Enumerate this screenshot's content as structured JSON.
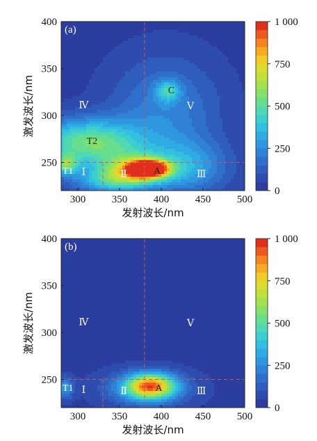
{
  "chart_data": [
    {
      "type": "heatmap",
      "panel_label": "(a)",
      "xlabel": "发射波长/nm",
      "ylabel": "激发波长/nm",
      "xlim": [
        280,
        500
      ],
      "ylim": [
        220,
        400
      ],
      "x_ticks": [
        "300",
        "350",
        "400",
        "450",
        "500"
      ],
      "y_ticks": [
        "250",
        "300",
        "350",
        "400"
      ],
      "colorbar": {
        "min": 0,
        "max": 1000,
        "ticks": [
          "0",
          "250",
          "500",
          "750",
          "1 000"
        ]
      },
      "divider_lines": {
        "vertical_x": [
          330,
          380
        ],
        "horizontal_y": [
          250
        ]
      },
      "region_labels": [
        {
          "text": "T1",
          "x": 288,
          "y": 240,
          "color": "#ffffff"
        },
        {
          "text": "Ⅰ",
          "x": 307,
          "y": 239,
          "color": "#ffffff"
        },
        {
          "text": "Ⅱ",
          "x": 355,
          "y": 237,
          "color": "#ffffff"
        },
        {
          "text": "A",
          "x": 395,
          "y": 240,
          "color": "#222222"
        },
        {
          "text": "Ⅲ",
          "x": 448,
          "y": 237,
          "color": "#ffffff"
        },
        {
          "text": "T2",
          "x": 317,
          "y": 272,
          "color": "#222222"
        },
        {
          "text": "Ⅳ",
          "x": 307,
          "y": 310,
          "color": "#ffffff"
        },
        {
          "text": "Ⅴ",
          "x": 435,
          "y": 309,
          "color": "#ffffff"
        },
        {
          "text": "C",
          "x": 412,
          "y": 326,
          "color": "#222222"
        }
      ],
      "peaks": [
        {
          "x": 385,
          "y": 243,
          "value": 980,
          "sx": 16,
          "sy": 6
        },
        {
          "x": 368,
          "y": 242,
          "value": 450,
          "sx": 26,
          "sy": 11
        },
        {
          "x": 300,
          "y": 275,
          "value": 320,
          "sx": 45,
          "sy": 16
        },
        {
          "x": 330,
          "y": 262,
          "value": 260,
          "sx": 40,
          "sy": 20
        },
        {
          "x": 286,
          "y": 248,
          "value": 380,
          "sx": 10,
          "sy": 8
        },
        {
          "x": 408,
          "y": 326,
          "value": 280,
          "sx": 10,
          "sy": 8
        },
        {
          "x": 405,
          "y": 305,
          "value": 200,
          "sx": 45,
          "sy": 40
        },
        {
          "x": 430,
          "y": 245,
          "value": 260,
          "sx": 35,
          "sy": 20
        },
        {
          "x": 340,
          "y": 230,
          "value": 300,
          "sx": 30,
          "sy": 9
        }
      ]
    },
    {
      "type": "heatmap",
      "panel_label": "(b)",
      "xlabel": "发射波长/nm",
      "ylabel": "激发波长/nm",
      "xlim": [
        280,
        500
      ],
      "ylim": [
        220,
        400
      ],
      "x_ticks": [
        "300",
        "350",
        "400",
        "450",
        "500"
      ],
      "y_ticks": [
        "250",
        "300",
        "350",
        "400"
      ],
      "colorbar": {
        "min": 0,
        "max": 1000,
        "ticks": [
          "0",
          "250",
          "500",
          "750",
          "1 000"
        ]
      },
      "divider_lines": {
        "vertical_x": [
          330,
          380
        ],
        "horizontal_y": [
          250
        ]
      },
      "region_labels": [
        {
          "text": "T1",
          "x": 288,
          "y": 240,
          "color": "#ffffff"
        },
        {
          "text": "Ⅰ",
          "x": 307,
          "y": 238,
          "color": "#ffffff"
        },
        {
          "text": "Ⅱ",
          "x": 355,
          "y": 237,
          "color": "#ffffff"
        },
        {
          "text": "A",
          "x": 397,
          "y": 240,
          "color": "#222222"
        },
        {
          "text": "Ⅲ",
          "x": 448,
          "y": 237,
          "color": "#ffffff"
        },
        {
          "text": "Ⅳ",
          "x": 307,
          "y": 310,
          "color": "#ffffff"
        },
        {
          "text": "Ⅴ",
          "x": 435,
          "y": 309,
          "color": "#ffffff"
        }
      ],
      "peaks": [
        {
          "x": 387,
          "y": 243,
          "value": 700,
          "sx": 20,
          "sy": 9
        },
        {
          "x": 383,
          "y": 240,
          "value": 250,
          "sx": 36,
          "sy": 13
        },
        {
          "x": 285,
          "y": 241,
          "value": 250,
          "sx": 7,
          "sy": 8
        }
      ]
    }
  ]
}
